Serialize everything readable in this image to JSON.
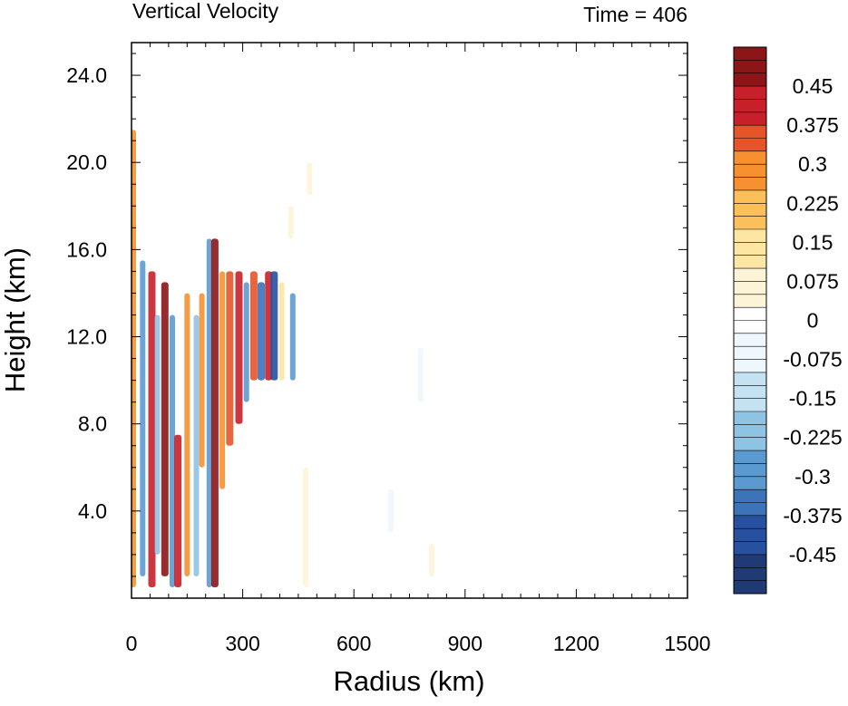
{
  "chart_data": {
    "type": "heatmap",
    "title": "Vertical Velocity",
    "time_label": "Time = 406",
    "xlabel": "Radius (km)",
    "ylabel": "Height (km)",
    "xlim": [
      0,
      1500
    ],
    "ylim": [
      0,
      25.5
    ],
    "x_ticks": [
      0,
      300,
      600,
      900,
      1200,
      1500
    ],
    "x_tick_labels": [
      "0",
      "300",
      "600",
      "900",
      "1200",
      "1500"
    ],
    "y_ticks": [
      4,
      8,
      12,
      16,
      20,
      24
    ],
    "y_tick_labels": [
      "4.0",
      "8.0",
      "12.0",
      "16.0",
      "20.0",
      "24.0"
    ],
    "colorbar": {
      "min": -0.525,
      "max": 0.525,
      "step": 0.025,
      "labels": [
        "0.45",
        "0.375",
        "0.3",
        "0.225",
        "0.15",
        "0.075",
        "0",
        "-0.075",
        "-0.15",
        "-0.225",
        "-0.3",
        "-0.375",
        "-0.45"
      ],
      "label_values": [
        0.45,
        0.375,
        0.3,
        0.225,
        0.15,
        0.075,
        0,
        -0.075,
        -0.15,
        -0.225,
        -0.3,
        -0.375,
        -0.45
      ],
      "colors_neg_to_pos": [
        "#1f3a74",
        "#2750a0",
        "#3d73b8",
        "#5b9ad0",
        "#8fc3e4",
        "#c4e2f2",
        "#eef7fc",
        "#ffffff",
        "#fdf4d8",
        "#fde5a2",
        "#fcc05a",
        "#f7912f",
        "#e6552a",
        "#c8202a",
        "#8c1518"
      ]
    },
    "features": [
      {
        "r": 5,
        "z0": 0.5,
        "z1": 21.5,
        "w": 0.3
      },
      {
        "r": 30,
        "z0": 1.0,
        "z1": 15.5,
        "w": -0.25
      },
      {
        "r": 55,
        "z0": 0.5,
        "z1": 15.0,
        "w": 0.4
      },
      {
        "r": 70,
        "z0": 2.0,
        "z1": 13.0,
        "w": -0.2
      },
      {
        "r": 90,
        "z0": 1.0,
        "z1": 14.5,
        "w": 0.5
      },
      {
        "r": 110,
        "z0": 0.5,
        "z1": 13.0,
        "w": -0.25
      },
      {
        "r": 125,
        "z0": 0.5,
        "z1": 7.5,
        "w": 0.45
      },
      {
        "r": 150,
        "z0": 1.0,
        "z1": 14.0,
        "w": 0.3
      },
      {
        "r": 175,
        "z0": 1.0,
        "z1": 13.0,
        "w": -0.2
      },
      {
        "r": 190,
        "z0": 6.0,
        "z1": 14.0,
        "w": 0.25
      },
      {
        "r": 210,
        "z0": 0.5,
        "z1": 16.5,
        "w": -0.3
      },
      {
        "r": 225,
        "z0": 0.5,
        "z1": 16.5,
        "w": 0.5
      },
      {
        "r": 245,
        "z0": 5.0,
        "z1": 15.0,
        "w": 0.3
      },
      {
        "r": 265,
        "z0": 7.0,
        "z1": 15.0,
        "w": 0.35
      },
      {
        "r": 290,
        "z0": 8.0,
        "z1": 15.0,
        "w": 0.45
      },
      {
        "r": 310,
        "z0": 9.0,
        "z1": 14.5,
        "w": -0.3
      },
      {
        "r": 330,
        "z0": 10.0,
        "z1": 15.0,
        "w": 0.35
      },
      {
        "r": 350,
        "z0": 10.0,
        "z1": 14.5,
        "w": -0.35
      },
      {
        "r": 370,
        "z0": 10.0,
        "z1": 15.0,
        "w": 0.4
      },
      {
        "r": 385,
        "z0": 10.0,
        "z1": 15.0,
        "w": -0.45
      },
      {
        "r": 405,
        "z0": 10.0,
        "z1": 14.5,
        "w": 0.15
      },
      {
        "r": 435,
        "z0": 10.0,
        "z1": 14.0,
        "w": -0.25
      },
      {
        "r": 430,
        "z0": 16.5,
        "z1": 18.0,
        "w": 0.1
      },
      {
        "r": 480,
        "z0": 18.5,
        "z1": 20.0,
        "w": 0.05
      },
      {
        "r": 470,
        "z0": 0.5,
        "z1": 6.0,
        "w": 0.08
      },
      {
        "r": 700,
        "z0": 3.0,
        "z1": 5.0,
        "w": -0.05
      },
      {
        "r": 780,
        "z0": 9.0,
        "z1": 11.5,
        "w": -0.05
      },
      {
        "r": 810,
        "z0": 1.0,
        "z1": 2.5,
        "w": 0.05
      }
    ]
  }
}
